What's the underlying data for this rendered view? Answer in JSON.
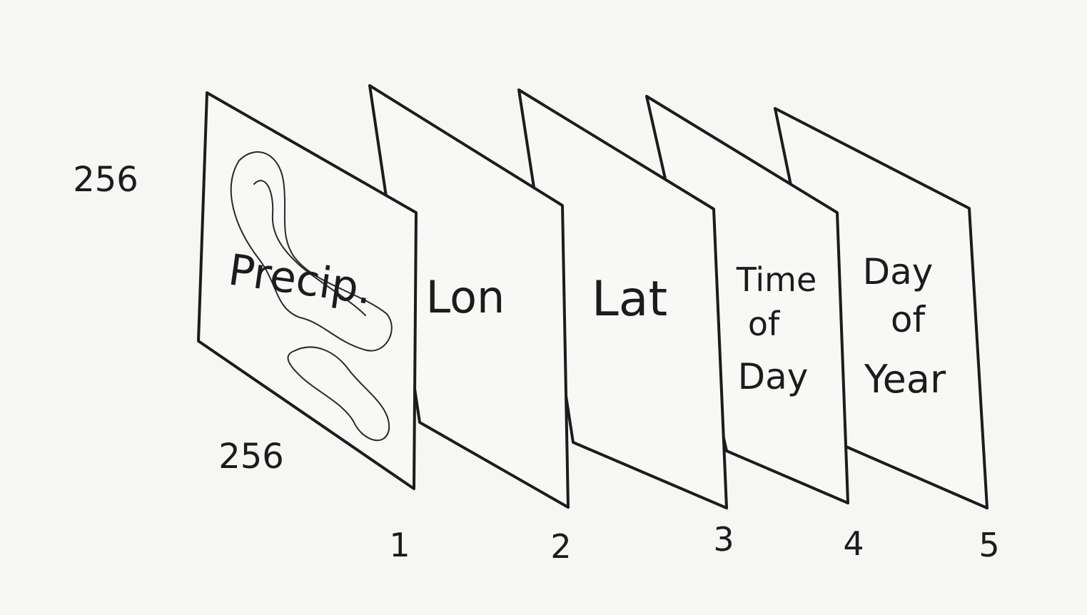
{
  "diagram": {
    "dimension_labels": {
      "height": "256",
      "width": "256"
    },
    "layers": [
      {
        "label_lines": [
          "Precip."
        ],
        "index": "1"
      },
      {
        "label_lines": [
          "Lon"
        ],
        "index": "2"
      },
      {
        "label_lines": [
          "Lat"
        ],
        "index": "3"
      },
      {
        "label_lines": [
          "Time",
          "of",
          "Day"
        ],
        "index": "4"
      },
      {
        "label_lines": [
          "Day",
          "of",
          "Year"
        ],
        "index": "5"
      }
    ]
  }
}
